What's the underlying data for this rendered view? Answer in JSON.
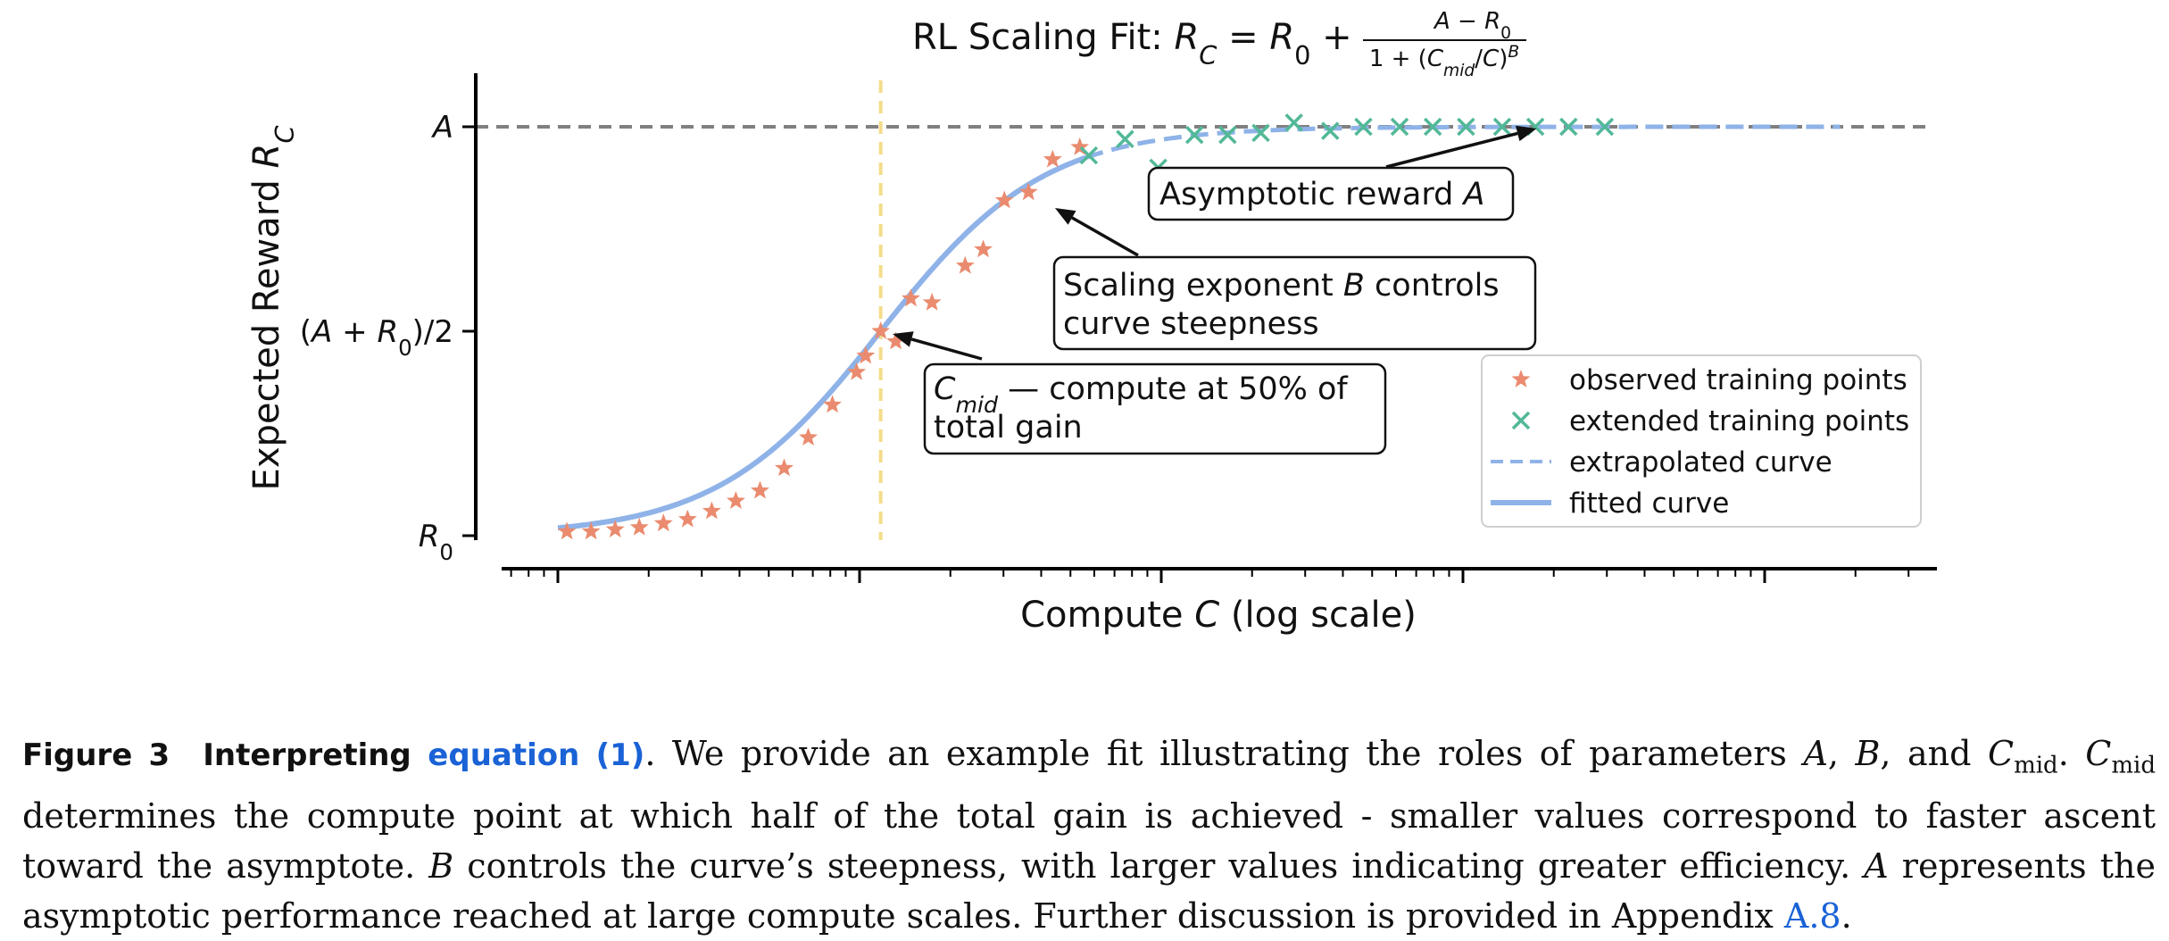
{
  "chart_data": {
    "type": "line",
    "title_prefix": "RL Scaling Fit: ",
    "title_equation": "R_C = R_0 + (A − R_0) / (1 + (C_mid/C)^B)",
    "xlabel": "Compute  C  (log scale)",
    "ylabel": "Expected Reward  R_C",
    "xscale": "log (unlabeled ticks)",
    "xlim": [
      -0.45,
      4.15
    ],
    "ylim": [
      -0.08,
      1.1
    ],
    "y_ticks": [
      {
        "value": 0.0,
        "label": "R_0"
      },
      {
        "value": 0.5,
        "label": "(A + R_0)/2"
      },
      {
        "value": 1.0,
        "label": "A"
      }
    ],
    "x_major_ticks": [
      -0.25,
      0.75,
      1.75,
      2.75,
      3.75
    ],
    "asymptote": {
      "y": 1.0,
      "color": "#808080",
      "style": "dashed"
    },
    "c_mid_line": {
      "x": 0.82,
      "color": "#f4dc8a",
      "style": "dashed"
    },
    "fit_params": {
      "R0": 0.0,
      "A": 1.0,
      "B": 1.6,
      "log10_C_mid": 0.82
    },
    "series": [
      {
        "name": "observed training points",
        "marker": "star",
        "color": "#ea8b6f",
        "x": [
          -0.22,
          -0.14,
          -0.06,
          0.02,
          0.1,
          0.18,
          0.26,
          0.34,
          0.42,
          0.5,
          0.58,
          0.66,
          0.74,
          0.77,
          0.82,
          0.87,
          0.92,
          0.99,
          1.1,
          1.16,
          1.23,
          1.31,
          1.39,
          1.48
        ],
        "y": [
          0.01,
          0.01,
          0.015,
          0.02,
          0.03,
          0.04,
          0.06,
          0.085,
          0.11,
          0.165,
          0.24,
          0.32,
          0.4,
          0.44,
          0.5,
          0.475,
          0.58,
          0.57,
          0.66,
          0.7,
          0.82,
          0.84,
          0.92,
          0.95
        ]
      },
      {
        "name": "extended training points",
        "marker": "x",
        "color": "#52b898",
        "x": [
          1.51,
          1.63,
          1.74,
          1.86,
          1.97,
          2.08,
          2.19,
          2.31,
          2.42,
          2.54,
          2.65,
          2.76,
          2.88,
          2.99,
          3.1,
          3.22
        ],
        "y": [
          0.93,
          0.97,
          0.9,
          0.98,
          0.98,
          0.985,
          1.01,
          0.99,
          1.0,
          1.0,
          1.0,
          1.0,
          1.0,
          1.0,
          1.0,
          1.0
        ]
      },
      {
        "name": "extrapolated curve",
        "style": "dashed",
        "color": "#8fb3e8",
        "x_range": [
          1.5,
          4.0
        ]
      },
      {
        "name": "fitted curve",
        "style": "solid",
        "color": "#8fb3e8",
        "x_range": [
          -0.25,
          1.5
        ]
      }
    ],
    "annotations": [
      {
        "id": "asym",
        "text": "Asymptotic reward A",
        "points_to": {
          "x": 3.0,
          "y": 1.0
        }
      },
      {
        "id": "steep",
        "text_line1": "Scaling exponent B controls",
        "text_line2": " curve steepness",
        "points_to": {
          "x": 1.38,
          "y": 0.81
        }
      },
      {
        "id": "cmid",
        "text_line1": "C_mid — compute at 50% of",
        "text_line2": "total gain",
        "points_to": {
          "x": 0.83,
          "y": 0.5
        }
      }
    ],
    "legend_position": "lower-right"
  },
  "caption": {
    "label": "Figure 3",
    "bold_text": "Interpreting",
    "ref": "equation (1)",
    "text1": ". We provide an example fit illustrating the roles of parameters ",
    "param_A": "A",
    "sep1": ", ",
    "param_B": "B",
    "sep2": ", and ",
    "param_C": "C",
    "sub_mid": "mid",
    "text2": ". ",
    "text3": " determines the compute point at which half of the total gain is achieved - smaller values correspond to faster ascent toward the asymptote. ",
    "text4": " controls the curve’s steepness, with larger values indicating greater efficiency. ",
    "text5": " represents the asymptotic performance reached at large compute scales. Further discussion is provided in Appendix ",
    "appendix": "A.8",
    "end": "."
  }
}
